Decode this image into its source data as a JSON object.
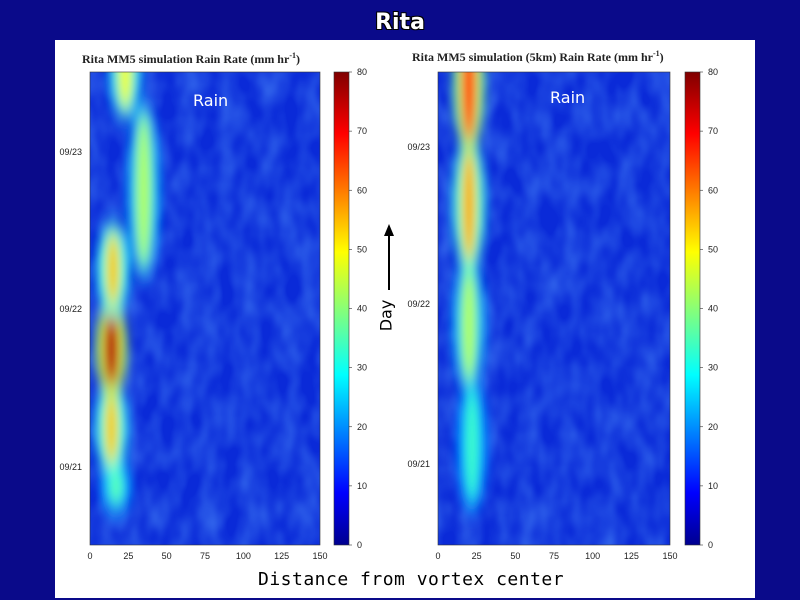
{
  "slide": {
    "title": "Rita"
  },
  "xlabel": "Distance from vortex center",
  "day_label": "Day",
  "colors": {
    "background": "#0a0a8a",
    "panel": "#ffffff"
  },
  "chart_data": [
    {
      "type": "heatmap",
      "title": "Rita MM5 simulation Rain Rate (mm hr",
      "title_sup": "-1",
      "title_end": ")",
      "annotation": "Rain",
      "x_ticks": [
        "0",
        "25",
        "50",
        "75",
        "100",
        "125",
        "150"
      ],
      "xlim": [
        0,
        150
      ],
      "y_ticks": [
        "09/21",
        "09/22",
        "09/23"
      ],
      "colorbar": {
        "min": 0,
        "max": 80,
        "ticks": [
          "0",
          "10",
          "20",
          "30",
          "40",
          "50",
          "60",
          "70",
          "80"
        ],
        "colormap": "jet"
      },
      "bands": [
        {
          "x": 17,
          "y_from": "09/20 18:00",
          "y_to": "09/21 00:00",
          "peak": 38
        },
        {
          "x": 14,
          "y_from": "09/21 00:00",
          "y_to": "09/21 12:00",
          "peak": 55
        },
        {
          "x": 14,
          "y_from": "09/21 12:00",
          "y_to": "09/22 00:00",
          "peak": 78
        },
        {
          "x": 15,
          "y_from": "09/22 00:00",
          "y_to": "09/22 12:00",
          "peak": 55
        },
        {
          "x": 35,
          "y_from": "09/22 06:00",
          "y_to": "09/23 06:00",
          "peak": 45
        },
        {
          "x": 23,
          "y_from": "09/23 06:00",
          "y_to": "09/23 18:00",
          "peak": 50
        }
      ]
    },
    {
      "type": "heatmap",
      "title": "Rita MM5 simulation (5km) Rain Rate (mm hr",
      "title_sup": "-1",
      "title_end": ")",
      "annotation": "Rain",
      "x_ticks": [
        "0",
        "25",
        "50",
        "75",
        "100",
        "125",
        "150"
      ],
      "xlim": [
        0,
        150
      ],
      "y_ticks": [
        "09/21",
        "09/22",
        "09/23"
      ],
      "colorbar": {
        "min": 0,
        "max": 80,
        "ticks": [
          "0",
          "10",
          "20",
          "30",
          "40",
          "50",
          "60",
          "70",
          "80"
        ],
        "colormap": "jet"
      },
      "bands": [
        {
          "x": 22,
          "y_from": "09/20 18:00",
          "y_to": "09/21 12:00",
          "peak": 35
        },
        {
          "x": 20,
          "y_from": "09/21 12:00",
          "y_to": "09/22 06:00",
          "peak": 45
        },
        {
          "x": 20,
          "y_from": "09/22 06:00",
          "y_to": "09/23 00:00",
          "peak": 58
        },
        {
          "x": 20,
          "y_from": "09/23 00:00",
          "y_to": "09/23 18:00",
          "peak": 70
        }
      ]
    }
  ]
}
